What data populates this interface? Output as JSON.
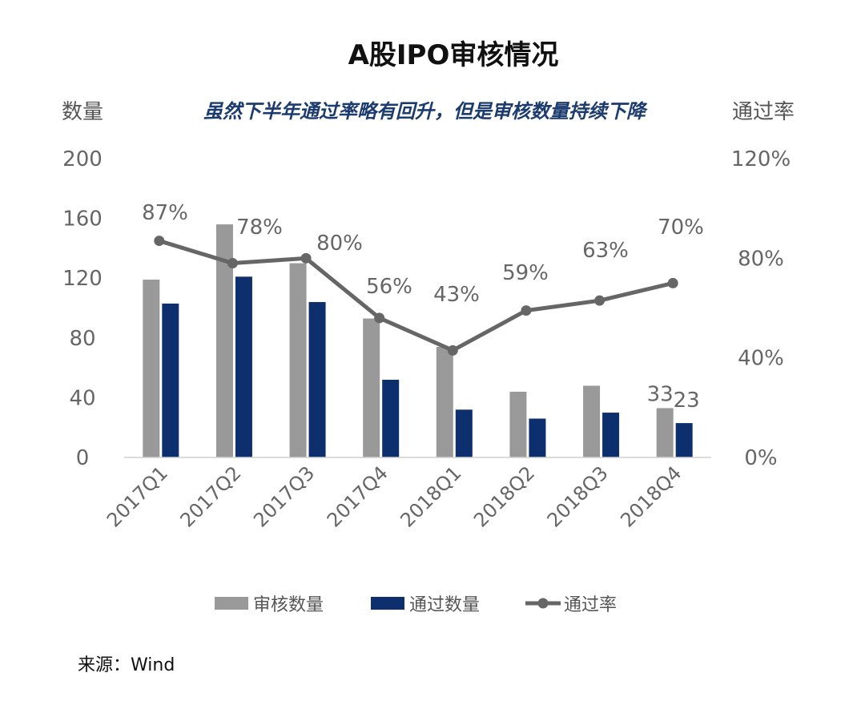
{
  "chart_data": {
    "type": "bar",
    "title": "A股IPO审核情况",
    "subtitle": "虽然下半年通过率略有回升，但是审核数量持续下降",
    "ylabel_left": "数量",
    "ylabel_right": "通过率",
    "ylim_left": [
      0,
      200
    ],
    "ylim_right": [
      0,
      120
    ],
    "yticks_left": [
      "0",
      "40",
      "80",
      "120",
      "160",
      "200"
    ],
    "yticks_right": [
      "0%",
      "40%",
      "80%",
      "120%"
    ],
    "categories": [
      "2017Q1",
      "2017Q2",
      "2017Q3",
      "2017Q4",
      "2018Q1",
      "2018Q2",
      "2018Q3",
      "2018Q4"
    ],
    "series": [
      {
        "name": "审核数量",
        "type": "bar",
        "axis": "left",
        "color": "#999999",
        "values": [
          119,
          156,
          130,
          93,
          74,
          44,
          48,
          33
        ],
        "data_labels": [
          "",
          "",
          "",
          "",
          "",
          "",
          "",
          "33"
        ]
      },
      {
        "name": "通过数量",
        "type": "bar",
        "axis": "left",
        "color": "#0d2f6e",
        "values": [
          103,
          121,
          104,
          52,
          32,
          26,
          30,
          23
        ],
        "data_labels": [
          "",
          "",
          "",
          "",
          "",
          "",
          "",
          "23"
        ]
      },
      {
        "name": "通过率",
        "type": "line",
        "axis": "right",
        "color": "#666666",
        "values": [
          87,
          78,
          80,
          56,
          43,
          59,
          63,
          70
        ],
        "data_labels": [
          "87%",
          "78%",
          "80%",
          "56%",
          "43%",
          "59%",
          "63%",
          "70%"
        ]
      }
    ],
    "grid": false,
    "legend": "bottom"
  },
  "source": "来源：Wind"
}
